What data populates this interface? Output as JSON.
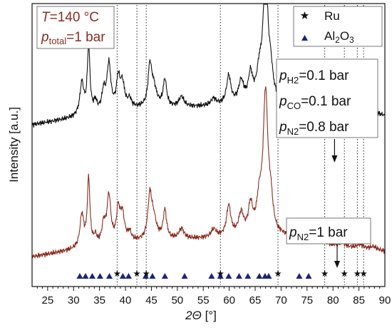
{
  "chart_data": {
    "type": "line",
    "xlabel_italic": "2Θ",
    "xlabel_rest": " [°]",
    "ylabel": "Intensity [a.u.]",
    "xlim": [
      22,
      90
    ],
    "xticks": [
      25,
      30,
      35,
      40,
      45,
      50,
      55,
      60,
      65,
      70,
      75,
      80,
      85,
      90
    ],
    "conditions": {
      "T_var": "T",
      "T_rest": "=140 °C",
      "p_var": "p",
      "p_sub": "total",
      "p_rest": "=1 bar"
    },
    "legend": [
      {
        "name": "Ru",
        "marker": "star",
        "color": "#111111"
      },
      {
        "name_main": "Al",
        "name_sub": "2",
        "name_tail": "O",
        "name_sub2": "3",
        "marker": "triangle",
        "color": "#1a237e"
      }
    ],
    "annotations": {
      "top": [
        {
          "var": "p",
          "sub": "H2",
          "rest": "=0.1 bar"
        },
        {
          "var": "p",
          "sub": "CO",
          "rest": "=0.1 bar"
        },
        {
          "var": "p",
          "sub": "N2",
          "rest": "=0.8 bar"
        }
      ],
      "bottom": {
        "var": "p",
        "sub": "N2",
        "rest": "=1 bar"
      },
      "arrow_top_x": 80.3,
      "arrow_bottom_x": 80.8
    },
    "ru_ref_lines": [
      38.4,
      42.2,
      44.0,
      58.3,
      69.4,
      78.4,
      82.2,
      84.7,
      85.9
    ],
    "ru_markers": [
      38.4,
      42.2,
      44.0,
      58.3,
      69.4,
      78.4,
      82.2,
      84.7,
      85.9
    ],
    "al2o3_markers": [
      31.2,
      32.3,
      33.6,
      35.1,
      36.9,
      39.5,
      40.6,
      43.9,
      45.2,
      47.6,
      51.4,
      56.6,
      58.3,
      59.9,
      61.9,
      63.6,
      65.8,
      66.9,
      67.6,
      73.5,
      75.3
    ],
    "series": [
      {
        "name": "H2/CO/N2",
        "color": "#111111",
        "offset": 200,
        "baseline": [
          [
            22,
            5
          ],
          [
            30,
            15
          ],
          [
            40,
            28
          ],
          [
            50,
            30
          ],
          [
            60,
            33
          ],
          [
            70,
            35
          ],
          [
            80,
            25
          ],
          [
            90,
            18
          ]
        ],
        "peaks": [
          {
            "center": 31.6,
            "height": 48,
            "width": 0.45
          },
          {
            "center": 32.9,
            "height": 100,
            "width": 0.3
          },
          {
            "center": 34.2,
            "height": 15,
            "width": 0.35
          },
          {
            "center": 35.8,
            "height": 28,
            "width": 0.4
          },
          {
            "center": 36.8,
            "height": 68,
            "width": 0.45
          },
          {
            "center": 38.6,
            "height": 42,
            "width": 0.4
          },
          {
            "center": 39.4,
            "height": 36,
            "width": 0.5
          },
          {
            "center": 40.8,
            "height": 12,
            "width": 0.4
          },
          {
            "center": 44.7,
            "height": 55,
            "width": 0.4
          },
          {
            "center": 45.4,
            "height": 30,
            "width": 0.7
          },
          {
            "center": 47.6,
            "height": 40,
            "width": 0.4
          },
          {
            "center": 50.8,
            "height": 15,
            "width": 0.6
          },
          {
            "center": 57.0,
            "height": 10,
            "width": 0.6
          },
          {
            "center": 59.9,
            "height": 42,
            "width": 0.5
          },
          {
            "center": 62.3,
            "height": 32,
            "width": 0.6
          },
          {
            "center": 64.1,
            "height": 40,
            "width": 0.5
          },
          {
            "center": 65.8,
            "height": 38,
            "width": 0.6
          },
          {
            "center": 67.0,
            "height": 190,
            "width": 0.55
          },
          {
            "center": 68.0,
            "height": 35,
            "width": 0.5
          },
          {
            "center": 73.6,
            "height": 20,
            "width": 1.2
          },
          {
            "center": 77.0,
            "height": 8,
            "width": 1.2
          },
          {
            "center": 81.7,
            "height": 8,
            "width": 0.8
          },
          {
            "center": 85.2,
            "height": 8,
            "width": 0.8
          },
          {
            "center": 87.8,
            "height": 7,
            "width": 0.8
          }
        ]
      },
      {
        "name": "N2",
        "color": "#8b2c1f",
        "offset": 0,
        "baseline": [
          [
            22,
            10
          ],
          [
            30,
            20
          ],
          [
            40,
            30
          ],
          [
            50,
            35
          ],
          [
            60,
            38
          ],
          [
            70,
            38
          ],
          [
            80,
            25
          ],
          [
            90,
            18
          ]
        ],
        "peaks": [
          {
            "center": 31.6,
            "height": 48,
            "width": 0.45
          },
          {
            "center": 32.9,
            "height": 100,
            "width": 0.3
          },
          {
            "center": 34.2,
            "height": 12,
            "width": 0.35
          },
          {
            "center": 35.8,
            "height": 28,
            "width": 0.4
          },
          {
            "center": 36.8,
            "height": 70,
            "width": 0.45
          },
          {
            "center": 38.6,
            "height": 45,
            "width": 0.4
          },
          {
            "center": 39.4,
            "height": 40,
            "width": 0.5
          },
          {
            "center": 40.8,
            "height": 12,
            "width": 0.4
          },
          {
            "center": 44.7,
            "height": 60,
            "width": 0.45
          },
          {
            "center": 45.4,
            "height": 30,
            "width": 0.7
          },
          {
            "center": 47.6,
            "height": 42,
            "width": 0.4
          },
          {
            "center": 50.8,
            "height": 15,
            "width": 0.6
          },
          {
            "center": 57.0,
            "height": 12,
            "width": 0.6
          },
          {
            "center": 59.9,
            "height": 45,
            "width": 0.5
          },
          {
            "center": 62.3,
            "height": 32,
            "width": 0.6
          },
          {
            "center": 64.1,
            "height": 42,
            "width": 0.5
          },
          {
            "center": 65.8,
            "height": 45,
            "width": 0.6
          },
          {
            "center": 67.0,
            "height": 205,
            "width": 0.55
          },
          {
            "center": 68.0,
            "height": 40,
            "width": 0.5
          },
          {
            "center": 73.6,
            "height": 15,
            "width": 1.2
          },
          {
            "center": 77.0,
            "height": 8,
            "width": 1.2
          },
          {
            "center": 81.7,
            "height": 6,
            "width": 0.8
          },
          {
            "center": 85.2,
            "height": 6,
            "width": 0.8
          },
          {
            "center": 87.8,
            "height": 5,
            "width": 0.8
          }
        ]
      }
    ]
  }
}
